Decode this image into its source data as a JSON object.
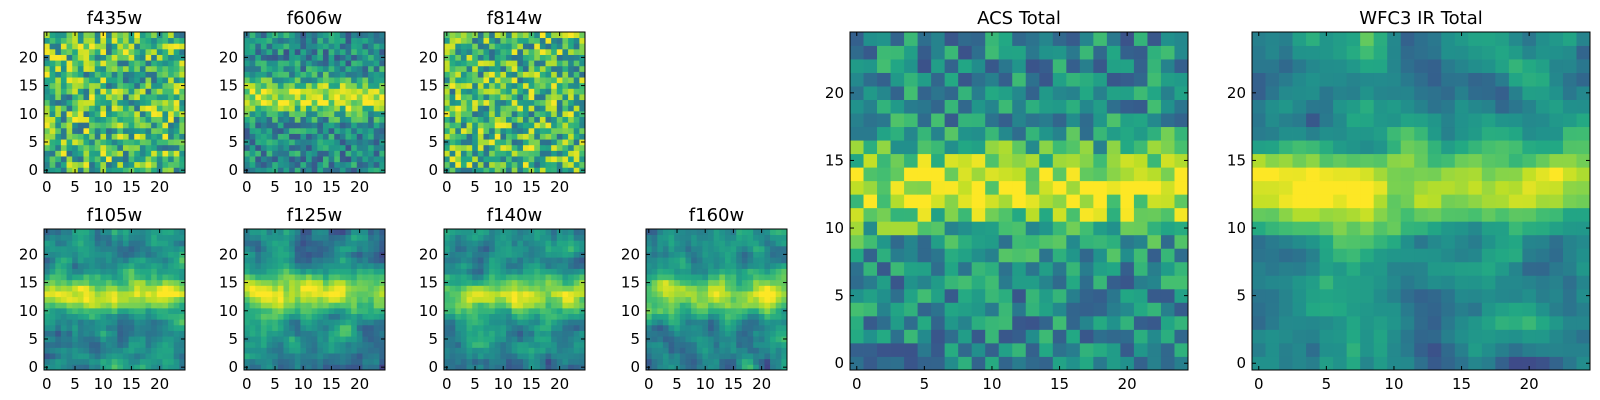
{
  "figure": {
    "description_free": true
  },
  "chart_data": [
    {
      "type": "heatmap",
      "title": "f435w",
      "xticks": [
        "0",
        "5",
        "10",
        "15",
        "20"
      ],
      "yticks": [
        "0",
        "5",
        "10",
        "15",
        "20"
      ],
      "xlim": [
        -0.5,
        24.5
      ],
      "ylim": [
        -0.5,
        24.5
      ],
      "grid": false,
      "colormap": "viridis",
      "pattern": "noise",
      "seed": 11
    },
    {
      "type": "heatmap",
      "title": "f606w",
      "xticks": [
        "0",
        "5",
        "10",
        "15",
        "20"
      ],
      "yticks": [
        "0",
        "5",
        "10",
        "15",
        "20"
      ],
      "xlim": [
        -0.5,
        24.5
      ],
      "ylim": [
        -0.5,
        24.5
      ],
      "grid": false,
      "colormap": "viridis",
      "pattern": "band",
      "band_center": 13,
      "seed": 23
    },
    {
      "type": "heatmap",
      "title": "f814w",
      "xticks": [
        "0",
        "5",
        "10",
        "15",
        "20"
      ],
      "yticks": [
        "0",
        "5",
        "10",
        "15",
        "20"
      ],
      "xlim": [
        -0.5,
        24.5
      ],
      "ylim": [
        -0.5,
        24.5
      ],
      "grid": false,
      "colormap": "viridis",
      "pattern": "noise",
      "seed": 37
    },
    {
      "type": "heatmap",
      "title": "f105w",
      "xticks": [
        "0",
        "5",
        "10",
        "15",
        "20"
      ],
      "yticks": [
        "0",
        "5",
        "10",
        "15",
        "20"
      ],
      "xlim": [
        -0.5,
        24.5
      ],
      "ylim": [
        -0.5,
        24.5
      ],
      "grid": false,
      "colormap": "viridis",
      "pattern": "smooth-band",
      "band_center": 13,
      "seed": 41
    },
    {
      "type": "heatmap",
      "title": "f125w",
      "xticks": [
        "0",
        "5",
        "10",
        "15",
        "20"
      ],
      "yticks": [
        "0",
        "5",
        "10",
        "15",
        "20"
      ],
      "xlim": [
        -0.5,
        24.5
      ],
      "ylim": [
        -0.5,
        24.5
      ],
      "grid": false,
      "colormap": "viridis",
      "pattern": "smooth-band",
      "band_center": 13,
      "seed": 53
    },
    {
      "type": "heatmap",
      "title": "f140w",
      "xticks": [
        "0",
        "5",
        "10",
        "15",
        "20"
      ],
      "yticks": [
        "0",
        "5",
        "10",
        "15",
        "20"
      ],
      "xlim": [
        -0.5,
        24.5
      ],
      "ylim": [
        -0.5,
        24.5
      ],
      "grid": false,
      "colormap": "viridis",
      "pattern": "smooth-band",
      "band_center": 13,
      "seed": 67
    },
    {
      "type": "heatmap",
      "title": "f160w",
      "xticks": [
        "0",
        "5",
        "10",
        "15",
        "20"
      ],
      "yticks": [
        "0",
        "5",
        "10",
        "15",
        "20"
      ],
      "xlim": [
        -0.5,
        24.5
      ],
      "ylim": [
        -0.5,
        24.5
      ],
      "grid": false,
      "colormap": "viridis",
      "pattern": "smooth-band",
      "band_center": 13,
      "seed": 79
    },
    {
      "type": "heatmap",
      "title": "ACS Total",
      "xticks": [
        "0",
        "5",
        "10",
        "15",
        "20"
      ],
      "yticks": [
        "0",
        "5",
        "10",
        "15",
        "20"
      ],
      "xlim": [
        -0.5,
        24.5
      ],
      "ylim": [
        -0.5,
        24.5
      ],
      "grid": false,
      "colormap": "viridis",
      "pattern": "band",
      "band_center": 13,
      "seed": 97
    },
    {
      "type": "heatmap",
      "title": "WFC3 IR Total",
      "xticks": [
        "0",
        "5",
        "10",
        "15",
        "20"
      ],
      "yticks": [
        "0",
        "5",
        "10",
        "15",
        "20"
      ],
      "xlim": [
        -0.5,
        24.5
      ],
      "ylim": [
        -0.5,
        24.5
      ],
      "grid": false,
      "colormap": "viridis",
      "pattern": "smooth-band",
      "band_center": 13,
      "seed": 101
    }
  ]
}
